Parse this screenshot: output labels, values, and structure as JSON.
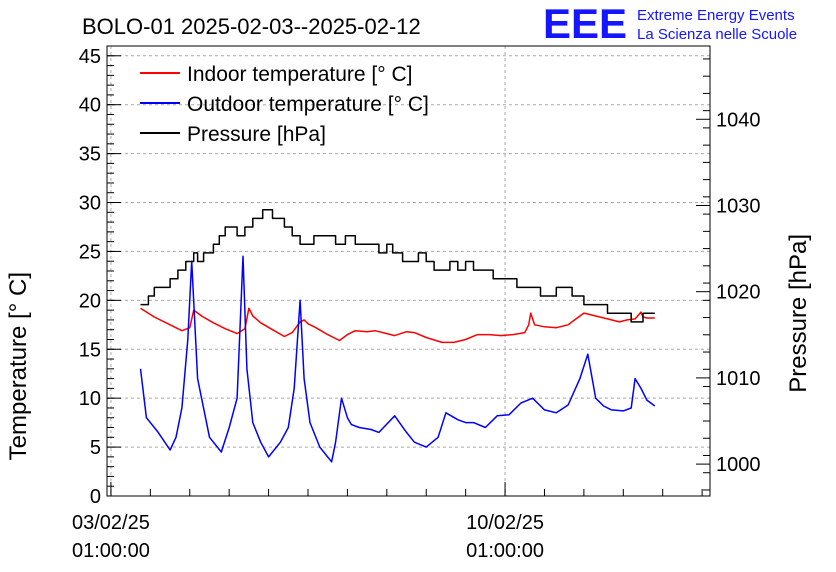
{
  "title": "BOLO-01 2025-02-03--2025-02-12",
  "logo": {
    "mark": "EEE",
    "line1": "Extreme Energy Events",
    "line2": "La Scienza nelle Scuole",
    "color": "#1515ff"
  },
  "chart_data": {
    "type": "line",
    "title": "BOLO-01 2025-02-03--2025-02-12",
    "xlabel": "",
    "ylabel": "Temperature [° C]",
    "y2label": "Pressure [hPa]",
    "ylim": [
      0,
      46
    ],
    "y2lim": [
      996.3,
      1048.5
    ],
    "yticks": [
      0,
      5,
      10,
      15,
      20,
      25,
      30,
      35,
      40,
      45
    ],
    "y2ticks": [
      1000,
      1010,
      1020,
      1030,
      1040
    ],
    "xlim_days": [
      -0.1,
      15.2
    ],
    "xticks": [
      {
        "day": 0,
        "date": "03/02/25",
        "time": "01:00:00"
      },
      {
        "day": 10,
        "date": "10/02/25",
        "time": "01:00:00"
      }
    ],
    "grid": true,
    "legend_position": "top-left",
    "series": [
      {
        "name": "Indoor temperature [° C]",
        "axis": "left",
        "color": "#ff0000",
        "x": [
          0.75,
          1.1,
          1.5,
          1.8,
          2.0,
          2.1,
          2.3,
          2.6,
          2.9,
          3.2,
          3.4,
          3.5,
          3.6,
          3.8,
          4.1,
          4.4,
          4.6,
          4.8,
          4.9,
          5.0,
          5.2,
          5.5,
          5.8,
          6.0,
          6.2,
          6.5,
          6.7,
          6.9,
          7.2,
          7.5,
          7.7,
          8.0,
          8.4,
          8.7,
          9.0,
          9.3,
          9.6,
          9.9,
          10.2,
          10.5,
          10.6,
          10.65,
          10.75,
          11.0,
          11.3,
          11.6,
          11.8,
          12.0,
          12.1,
          12.3,
          12.6,
          12.9,
          13.1,
          13.3,
          13.45,
          13.5,
          13.6,
          13.8
        ],
        "y": [
          19.2,
          18.3,
          17.5,
          16.9,
          17.2,
          19.0,
          18.4,
          17.7,
          17.1,
          16.6,
          17.1,
          19.2,
          18.4,
          17.7,
          17.0,
          16.3,
          16.7,
          17.8,
          18.0,
          17.6,
          17.2,
          16.5,
          15.9,
          16.5,
          16.9,
          16.8,
          16.9,
          16.7,
          16.4,
          16.8,
          16.7,
          16.2,
          15.7,
          15.7,
          16.0,
          16.5,
          16.5,
          16.4,
          16.5,
          16.7,
          17.5,
          18.7,
          17.5,
          17.3,
          17.2,
          17.5,
          18.1,
          18.7,
          18.6,
          18.4,
          18.1,
          17.8,
          18.0,
          18.1,
          18.8,
          18.3,
          18.2,
          18.2
        ]
      },
      {
        "name": "Outdoor temperature [° C]",
        "axis": "left",
        "color": "#0000ff",
        "x": [
          0.75,
          0.9,
          1.2,
          1.5,
          1.65,
          1.8,
          1.95,
          2.05,
          2.2,
          2.5,
          2.8,
          3.0,
          3.2,
          3.35,
          3.45,
          3.6,
          3.8,
          4.0,
          4.3,
          4.5,
          4.65,
          4.8,
          4.9,
          5.05,
          5.3,
          5.6,
          5.7,
          5.85,
          6.0,
          6.1,
          6.3,
          6.6,
          6.8,
          7.2,
          7.5,
          7.7,
          8.0,
          8.3,
          8.5,
          8.8,
          9.0,
          9.2,
          9.5,
          9.8,
          10.1,
          10.4,
          10.7,
          11.0,
          11.3,
          11.6,
          11.9,
          12.1,
          12.3,
          12.5,
          12.7,
          13.0,
          13.2,
          13.3,
          13.45,
          13.6,
          13.8
        ],
        "y": [
          13.0,
          8.0,
          6.5,
          4.7,
          6.0,
          9.0,
          16.0,
          24.0,
          12.0,
          6.0,
          4.5,
          7.0,
          10.0,
          24.5,
          13.0,
          7.5,
          5.5,
          4.0,
          5.5,
          7.0,
          11.0,
          20.0,
          12.0,
          7.5,
          5.0,
          3.5,
          5.5,
          10.0,
          8.0,
          7.3,
          7.0,
          6.8,
          6.5,
          8.2,
          6.5,
          5.5,
          5.0,
          6.0,
          8.5,
          7.8,
          7.5,
          7.5,
          7.0,
          8.2,
          8.3,
          9.5,
          10.0,
          8.8,
          8.5,
          9.3,
          12.0,
          14.5,
          10.0,
          9.2,
          8.8,
          8.7,
          9.0,
          12.0,
          11.0,
          9.8,
          9.2
        ]
      },
      {
        "name": "Pressure [hPa]",
        "axis": "right",
        "color": "#000000",
        "step": true,
        "x": [
          0.75,
          0.95,
          1.1,
          1.5,
          1.7,
          1.9,
          2.1,
          2.2,
          2.35,
          2.6,
          2.75,
          2.9,
          3.2,
          3.4,
          3.6,
          3.85,
          4.1,
          4.4,
          4.6,
          4.8,
          5.0,
          5.15,
          5.45,
          5.7,
          5.95,
          6.2,
          6.5,
          6.8,
          7.0,
          7.15,
          7.4,
          7.6,
          7.8,
          8.0,
          8.2,
          8.4,
          8.6,
          8.8,
          9.0,
          9.2,
          9.5,
          9.7,
          10.0,
          10.3,
          10.6,
          10.9,
          11.3,
          11.7,
          12.0,
          12.3,
          12.6,
          12.9,
          13.2,
          13.5,
          13.8
        ],
        "y": [
          1018.5,
          1019.5,
          1020.5,
          1021.5,
          1022.5,
          1023.5,
          1024.5,
          1023.5,
          1024.5,
          1025.5,
          1026.5,
          1027.5,
          1026.5,
          1027.5,
          1028.5,
          1029.5,
          1028.5,
          1027.5,
          1026.5,
          1025.5,
          1025.5,
          1026.5,
          1026.5,
          1025.5,
          1026.5,
          1025.5,
          1025.5,
          1024.5,
          1025.5,
          1024.5,
          1023.5,
          1023.5,
          1024.5,
          1023.5,
          1022.5,
          1022.5,
          1023.5,
          1022.5,
          1023.5,
          1022.5,
          1022.5,
          1021.5,
          1021.5,
          1020.5,
          1020.5,
          1019.5,
          1020.5,
          1019.5,
          1018.5,
          1018.5,
          1017.5,
          1017.5,
          1016.5,
          1017.5,
          1017.5
        ]
      }
    ]
  }
}
